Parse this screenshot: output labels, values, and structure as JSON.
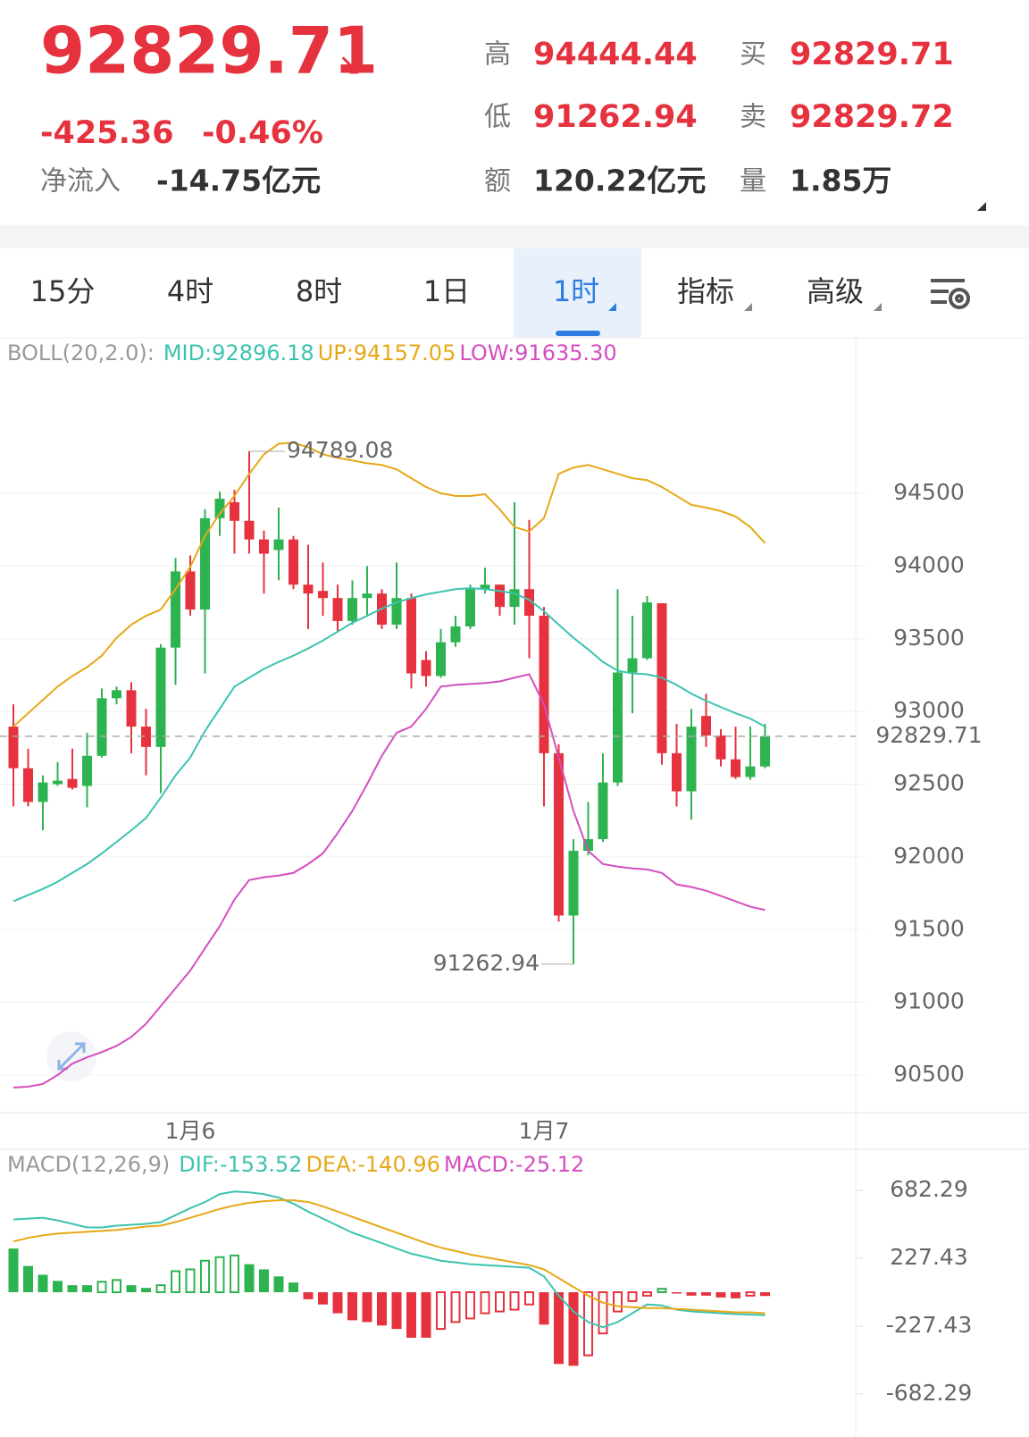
{
  "header": {
    "price": "92829.71",
    "change": "-425.36",
    "change_pct": "-0.46%",
    "net_inflow": {
      "label": "净流入",
      "value": "-14.75亿元"
    },
    "stats": [
      {
        "label": "高",
        "value": "94444.44"
      },
      {
        "label": "低",
        "value": "91262.94"
      },
      {
        "label": "额",
        "value": "120.22亿元"
      },
      {
        "label": "买",
        "value": "92829.71"
      },
      {
        "label": "卖",
        "value": "92829.72"
      },
      {
        "label": "量",
        "value": "1.85万"
      }
    ]
  },
  "tabs": [
    "15分",
    "4时",
    "8时",
    "1日",
    "1时",
    "指标",
    "高级"
  ],
  "chart_data": [
    {
      "type": "candlestick",
      "categories": [
        null,
        null,
        null,
        null,
        null,
        null,
        null,
        null,
        null,
        null,
        null,
        null,
        "1月6",
        null,
        null,
        null,
        null,
        null,
        null,
        null,
        null,
        null,
        null,
        null,
        null,
        null,
        null,
        null,
        null,
        null,
        null,
        null,
        null,
        null,
        null,
        null,
        "1月7",
        null,
        null,
        null,
        null,
        null,
        null,
        null,
        null,
        null,
        null,
        null,
        null,
        null,
        null,
        null
      ],
      "open": [
        92896,
        92610,
        92378,
        92500,
        92536,
        92488,
        92695,
        93091,
        93146,
        92896,
        92756,
        93439,
        93963,
        93701,
        94329,
        94439,
        94311,
        94183,
        94110,
        94183,
        93872,
        93829,
        93780,
        93622,
        93780,
        93811,
        93597,
        93780,
        93354,
        93244,
        93476,
        93585,
        93841,
        93872,
        93719,
        93841,
        93658,
        92713,
        91597,
        92042,
        92122,
        92512,
        93268,
        93366,
        93744,
        92713,
        92451,
        92969,
        92835,
        92671,
        92549,
        92622
      ],
      "high": [
        93049,
        92744,
        92561,
        92652,
        92744,
        92854,
        93158,
        93171,
        93201,
        93018,
        93463,
        94055,
        94073,
        94390,
        94512,
        94524,
        94789.08,
        94244,
        94402,
        94207,
        94146,
        94024,
        93872,
        93902,
        94000,
        93841,
        94024,
        93811,
        93415,
        93567,
        93658,
        93872,
        93988,
        93872,
        94439,
        94317,
        93719,
        92774,
        92122,
        92378,
        92713,
        93841,
        93658,
        93793,
        93744,
        92915,
        93018,
        93122,
        92878,
        92896,
        92896,
        92915
      ],
      "low": [
        92347,
        92347,
        92183,
        92488,
        92463,
        92341,
        92683,
        93049,
        92713,
        92561,
        92439,
        93183,
        93658,
        93262,
        94207,
        94085,
        94085,
        93811,
        93902,
        93841,
        93567,
        93658,
        93549,
        93597,
        93658,
        93567,
        93567,
        93158,
        93171,
        93232,
        93445,
        93567,
        93811,
        93658,
        93597,
        93366,
        92347,
        91555,
        91262.94,
        92012,
        92103,
        92488,
        92988,
        93354,
        92634,
        92347,
        92256,
        92756,
        92622,
        92536,
        92530,
        92610
      ],
      "close": [
        92610,
        92378,
        92512,
        92524,
        92475,
        92695,
        93091,
        93146,
        92896,
        92756,
        93439,
        93963,
        93701,
        94329,
        94463,
        94311,
        94183,
        94085,
        94183,
        93872,
        93811,
        93780,
        93622,
        93780,
        93811,
        93597,
        93780,
        93262,
        93244,
        93476,
        93585,
        93841,
        93872,
        93719,
        93841,
        93658,
        92713,
        91597,
        92042,
        92122,
        92512,
        93268,
        93366,
        93750,
        92713,
        92451,
        92896,
        92835,
        92671,
        92549,
        92622,
        92829.71
      ],
      "up_color": "#2eb351",
      "down_color": "#e5323e",
      "ylim": [
        90242,
        95557
      ],
      "yticks": [
        90500,
        91000,
        91500,
        92000,
        92500,
        93000,
        93500,
        94000,
        94500
      ],
      "grid": true,
      "last_price": 92829.71,
      "last_price_color": "#2eb351",
      "annotations": [
        94789.08,
        91262.94
      ],
      "overlay": {
        "title": "BOLL(20,2.0):",
        "series": [
          {
            "label": "MID:92896.18",
            "color": "#3cc3b0",
            "values": [
              91695,
              91738,
              91780,
              91829,
              91890,
              91951,
              92024,
              92103,
              92183,
              92268,
              92408,
              92561,
              92683,
              92866,
              93018,
              93171,
              93232,
              93293,
              93341,
              93384,
              93433,
              93488,
              93549,
              93610,
              93658,
              93707,
              93750,
              93780,
              93805,
              93823,
              93841,
              93848,
              93841,
              93829,
              93811,
              93768,
              93689,
              93597,
              93506,
              93427,
              93341,
              93280,
              93262,
              93256,
              93232,
              93183,
              93122,
              93073,
              93030,
              92988,
              92951,
              92896.18
            ]
          },
          {
            "label": "UP:94157.05",
            "color": "#e6a817",
            "values": [
              92896,
              92988,
              93079,
              93171,
              93244,
              93305,
              93384,
              93506,
              93597,
              93658,
              93701,
              93841,
              93994,
              94207,
              94360,
              94482,
              94634,
              94768,
              94841,
              94848,
              94817,
              94768,
              94744,
              94726,
              94707,
              94695,
              94665,
              94604,
              94543,
              94500,
              94482,
              94482,
              94494,
              94390,
              94268,
              94238,
              94329,
              94634,
              94677,
              94695,
              94665,
              94634,
              94604,
              94591,
              94543,
              94482,
              94421,
              94402,
              94378,
              94341,
              94268,
              94157.05
            ]
          },
          {
            "label": "LOW:91635.30",
            "color": "#d54ec0",
            "values": [
              90414,
              90420,
              90439,
              90500,
              90579,
              90622,
              90658,
              90701,
              90762,
              90853,
              90975,
              91097,
              91219,
              91372,
              91524,
              91707,
              91841,
              91860,
              91872,
              91890,
              91951,
              92024,
              92164,
              92317,
              92500,
              92695,
              92854,
              92896,
              93018,
              93171,
              93183,
              93189,
              93195,
              93207,
              93232,
              93256,
              93049,
              92683,
              92317,
              92042,
              91951,
              91933,
              91921,
              91914,
              91890,
              91811,
              91793,
              91768,
              91732,
              91695,
              91658,
              91635.3
            ]
          }
        ]
      }
    },
    {
      "type": "macd",
      "title": "MACD(12,26,9)",
      "ylim": [
        -970,
        934
      ],
      "yticks": [
        682.29,
        227.43,
        -227.43,
        -682.29
      ],
      "series": [
        {
          "label": "DIF:-153.52",
          "color": "#3cc3b0",
          "values": [
            487,
            493,
            499,
            481,
            458,
            434,
            434,
            446,
            452,
            458,
            470,
            516,
            563,
            604,
            657,
            675,
            669,
            657,
            634,
            593,
            540,
            493,
            446,
            399,
            364,
            329,
            293,
            258,
            235,
            211,
            200,
            188,
            182,
            176,
            170,
            164,
            106,
            -23,
            -129,
            -200,
            -235,
            -200,
            -141,
            -82,
            -88,
            -117,
            -129,
            -135,
            -141,
            -147,
            -150,
            -153.52
          ]
        },
        {
          "label": "DEA:-140.96",
          "color": "#e6a817",
          "values": [
            340,
            364,
            381,
            393,
            399,
            405,
            411,
            417,
            428,
            440,
            446,
            470,
            499,
            528,
            558,
            581,
            599,
            610,
            616,
            616,
            605,
            575,
            540,
            505,
            470,
            434,
            399,
            364,
            329,
            299,
            276,
            252,
            235,
            217,
            200,
            182,
            153,
            94,
            35,
            -23,
            -70,
            -94,
            -100,
            -106,
            -106,
            -112,
            -117,
            -123,
            -129,
            -135,
            -135,
            -140.96
          ]
        }
      ],
      "bars": {
        "label": "MACD:-25.12",
        "color": "#d54ec0",
        "up_color": "#2eb351",
        "down_color": "#e5323e",
        "values": [
          293,
          176,
          117,
          76,
          47,
          47,
          70,
          82,
          47,
          29,
          47,
          141,
          153,
          211,
          235,
          246,
          188,
          153,
          106,
          65,
          -47,
          -82,
          -141,
          -188,
          -200,
          -223,
          -246,
          -305,
          -305,
          -246,
          -200,
          -176,
          -141,
          -129,
          -117,
          -82,
          -217,
          -481,
          -493,
          -423,
          -276,
          -129,
          -59,
          -23,
          23,
          -6,
          -23,
          -23,
          -35,
          -41,
          -23,
          -25.12
        ]
      }
    }
  ]
}
